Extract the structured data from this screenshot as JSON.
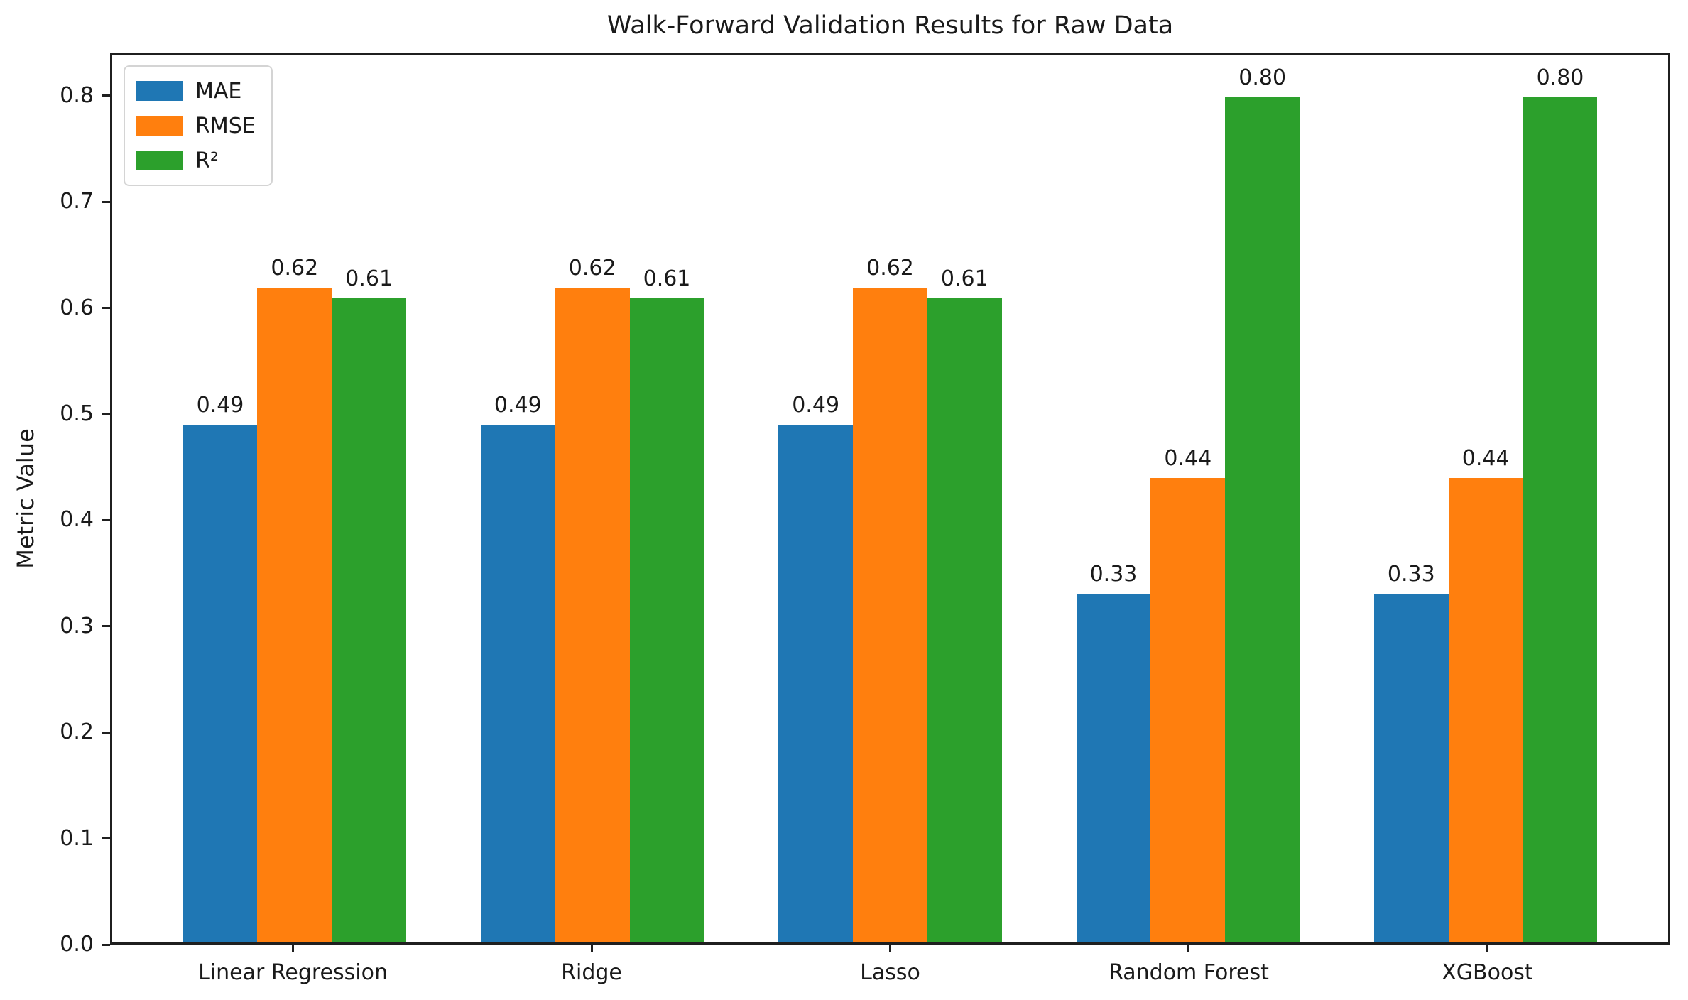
{
  "chart_data": {
    "type": "bar",
    "title": "Walk-Forward Validation Results for Raw Data",
    "xlabel": "",
    "ylabel": "Metric Value",
    "categories": [
      "Linear Regression",
      "Ridge",
      "Lasso",
      "Random Forest",
      "XGBoost"
    ],
    "series": [
      {
        "name": "MAE",
        "color": "#1f77b4",
        "values": [
          0.49,
          0.49,
          0.49,
          0.33,
          0.33
        ],
        "labels": [
          "0.49",
          "0.49",
          "0.49",
          "0.33",
          "0.33"
        ]
      },
      {
        "name": "RMSE",
        "color": "#ff7f0e",
        "values": [
          0.62,
          0.62,
          0.62,
          0.44,
          0.44
        ],
        "labels": [
          "0.62",
          "0.62",
          "0.62",
          "0.44",
          "0.44"
        ]
      },
      {
        "name": "R²",
        "color": "#2ca02c",
        "values": [
          0.61,
          0.61,
          0.61,
          0.8,
          0.8
        ],
        "labels": [
          "0.61",
          "0.61",
          "0.61",
          "0.80",
          "0.80"
        ]
      }
    ],
    "yticks": [
      "0.0",
      "0.1",
      "0.2",
      "0.3",
      "0.4",
      "0.5",
      "0.6",
      "0.7",
      "0.8"
    ],
    "ylim": [
      0,
      0.84
    ],
    "bar_width_units": 0.25,
    "x_units_min": -0.6125,
    "x_units_span": 5.225,
    "grid": false,
    "legend_position": "upper-left"
  }
}
